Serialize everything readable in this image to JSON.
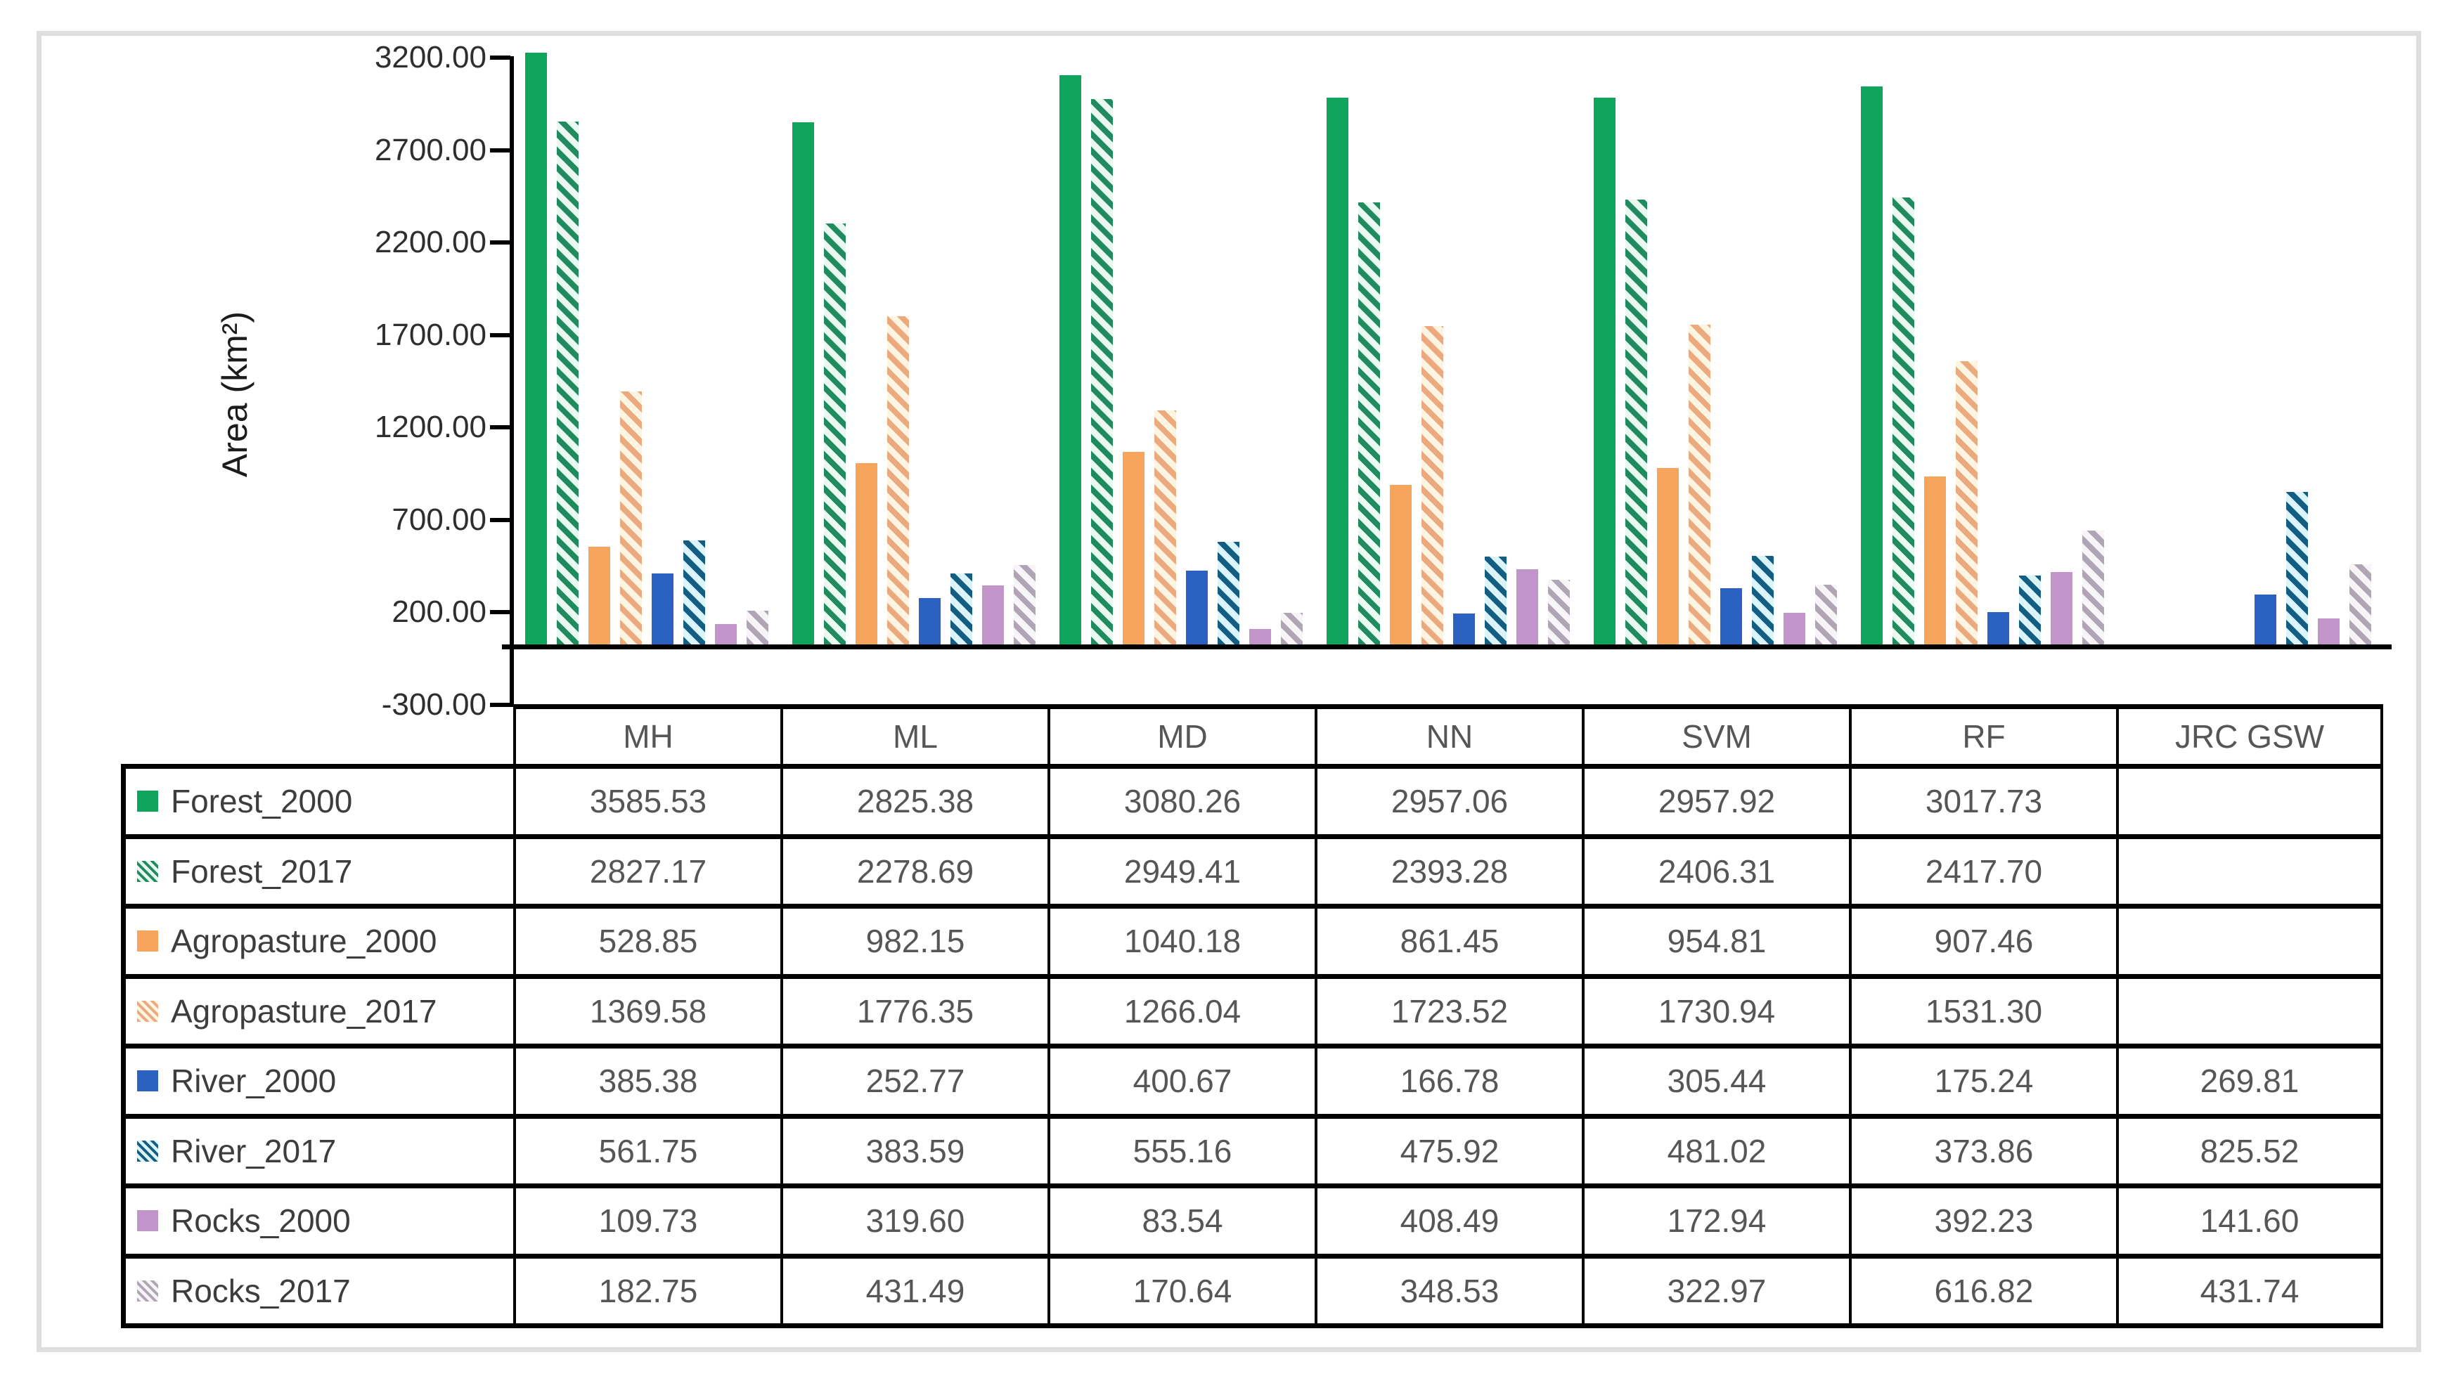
{
  "figure": {
    "y_axis_title": "Area (km²)",
    "y_ticks": [
      "3200.00",
      "2700.00",
      "2200.00",
      "1700.00",
      "1200.00",
      "700.00",
      "200.00",
      "-300.00"
    ]
  },
  "chart_data": {
    "type": "bar",
    "title": "",
    "xlabel": "",
    "ylabel": "Area (km²)",
    "ylim": [
      -300,
      3200
    ],
    "y_tick_step": 500,
    "grid": false,
    "legend_position": "data-table-left-column",
    "categories": [
      "MH",
      "ML",
      "MD",
      "NN",
      "SVM",
      "RF",
      "JRC GSW"
    ],
    "series": [
      {
        "name": "Forest_2000",
        "pattern": "solid",
        "color": "#0fa45c",
        "bg": "#0fa45c",
        "values": [
          3585.53,
          2825.38,
          3080.26,
          2957.06,
          2957.92,
          3017.73,
          null
        ]
      },
      {
        "name": "Forest_2017",
        "pattern": "hatch",
        "color": "#1f8b5f",
        "bg": "#e9f9f1",
        "values": [
          2827.17,
          2278.69,
          2949.41,
          2393.28,
          2406.31,
          2417.7,
          null
        ]
      },
      {
        "name": "Agropasture_2000",
        "pattern": "solid",
        "color": "#f7a55c",
        "bg": "#f7a55c",
        "values": [
          528.85,
          982.15,
          1040.18,
          861.45,
          954.81,
          907.46,
          null
        ]
      },
      {
        "name": "Agropasture_2017",
        "pattern": "hatch",
        "color": "#eba97d",
        "bg": "#fdf4e2",
        "values": [
          1369.58,
          1776.35,
          1266.04,
          1723.52,
          1730.94,
          1531.3,
          null
        ]
      },
      {
        "name": "River_2000",
        "pattern": "solid",
        "color": "#2b62c1",
        "bg": "#2b62c1",
        "values": [
          385.38,
          252.77,
          400.67,
          166.78,
          305.44,
          175.24,
          269.81
        ]
      },
      {
        "name": "River_2017",
        "pattern": "hatch",
        "color": "#145e83",
        "bg": "#daf4fa",
        "values": [
          561.75,
          383.59,
          555.16,
          475.92,
          481.02,
          373.86,
          825.52
        ]
      },
      {
        "name": "Rocks_2000",
        "pattern": "solid",
        "color": "#c295ca",
        "bg": "#c295ca",
        "values": [
          109.73,
          319.6,
          83.54,
          408.49,
          172.94,
          392.23,
          141.6
        ]
      },
      {
        "name": "Rocks_2017",
        "pattern": "hatch",
        "color": "#afa5b5",
        "bg": "#f8f5f9",
        "values": [
          182.75,
          431.49,
          170.64,
          348.53,
          322.97,
          616.82,
          431.74
        ]
      }
    ]
  }
}
